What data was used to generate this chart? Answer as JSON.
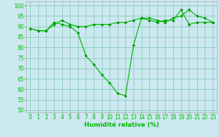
{
  "xlabel": "Humidité relative (%)",
  "bg_color": "#cce8f0",
  "grid_color": "#88ccbb",
  "line_color": "#00bb00",
  "marker_color": "#009900",
  "xlim": [
    -0.5,
    23.5
  ],
  "ylim": [
    49,
    102
  ],
  "yticks": [
    50,
    55,
    60,
    65,
    70,
    75,
    80,
    85,
    90,
    95,
    100
  ],
  "xticks": [
    0,
    1,
    2,
    3,
    4,
    5,
    6,
    7,
    8,
    9,
    10,
    11,
    12,
    13,
    14,
    15,
    16,
    17,
    18,
    19,
    20,
    21,
    22,
    23
  ],
  "line1_x": [
    0,
    1,
    2,
    3,
    4,
    5,
    6,
    7,
    8,
    9,
    10,
    11,
    12,
    13,
    14,
    15,
    16,
    17,
    18,
    19,
    20,
    21,
    22,
    23
  ],
  "line1_y": [
    89,
    88,
    88,
    92,
    91,
    90,
    87,
    76,
    72,
    67,
    63,
    58,
    57,
    81,
    94,
    94,
    93,
    92,
    94,
    95,
    98,
    95,
    94,
    92
  ],
  "line2_x": [
    0,
    1,
    2,
    3,
    4,
    5,
    6,
    7,
    8,
    9,
    10,
    11,
    12,
    13,
    14,
    15,
    16,
    17,
    18,
    19,
    20,
    21,
    22,
    23
  ],
  "line2_y": [
    89,
    88,
    88,
    91,
    93,
    91,
    90,
    90,
    91,
    91,
    91,
    92,
    92,
    93,
    94,
    93,
    92,
    93,
    93,
    98,
    91,
    92,
    92,
    92
  ],
  "tick_fontsize": 5.5,
  "xlabel_fontsize": 6.5
}
